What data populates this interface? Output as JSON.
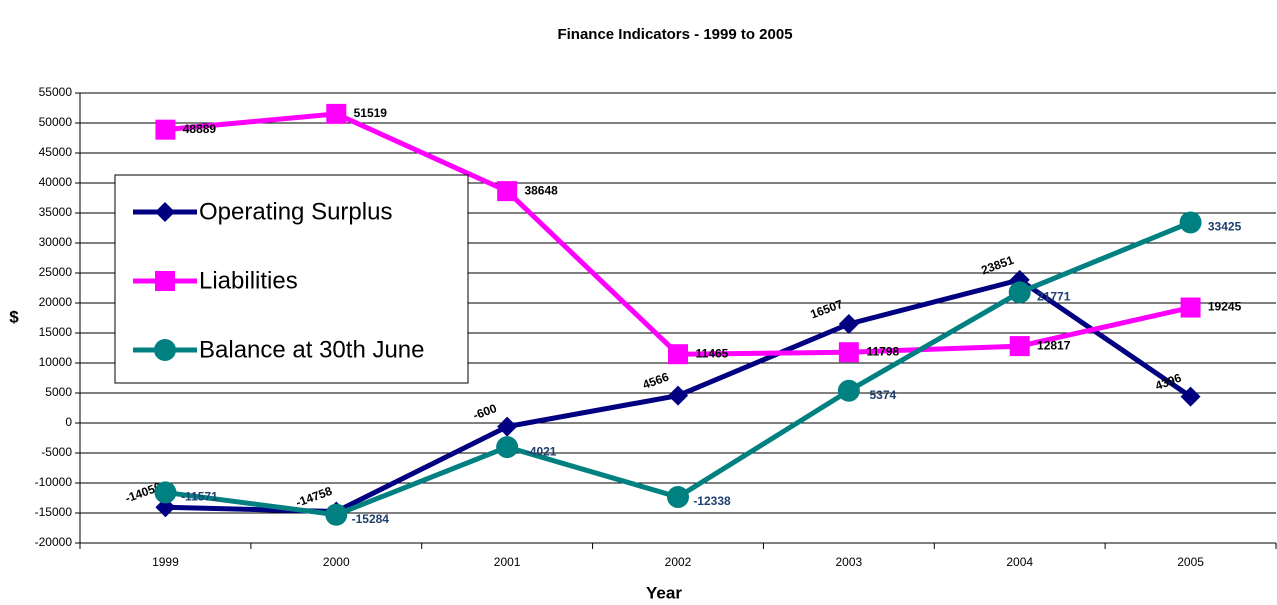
{
  "chart_data": {
    "type": "line",
    "title": "Finance Indicators - 1999 to 2005",
    "x_label": "Year",
    "y_label": "$",
    "categories": [
      "1999",
      "2000",
      "2001",
      "2002",
      "2003",
      "2004",
      "2005"
    ],
    "series": [
      {
        "name": "Operating Surplus",
        "color": "#000080",
        "marker": "diamond",
        "label_color": "#000000",
        "values": [
          -14050,
          -14758,
          -600,
          4566,
          16507,
          23851,
          4396
        ]
      },
      {
        "name": "Liabilities",
        "color": "#ff00ff",
        "marker": "square",
        "label_color": "#000000",
        "values": [
          48889,
          51519,
          38648,
          11465,
          11798,
          12817,
          19245
        ]
      },
      {
        "name": "Balance at 30th June",
        "color": "#008080",
        "marker": "circle",
        "label_color": "#1f3f6f",
        "values": [
          -11571,
          -15284,
          -4021,
          -12338,
          5374,
          21771,
          33425
        ]
      }
    ],
    "ylim": [
      -20000,
      55000
    ],
    "yticks": [
      -20000,
      -15000,
      -10000,
      -5000,
      0,
      5000,
      10000,
      15000,
      20000,
      25000,
      30000,
      35000,
      40000,
      45000,
      50000,
      55000
    ],
    "grid": true,
    "legend": "left"
  }
}
